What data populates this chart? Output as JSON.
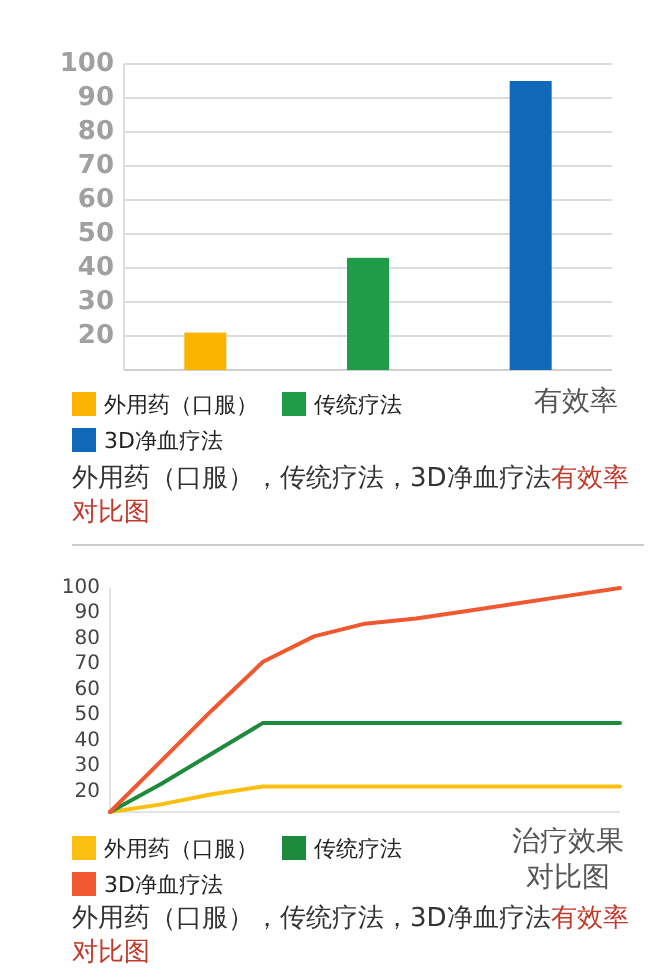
{
  "chart_data": [
    {
      "type": "bar",
      "xlabel": "有效率",
      "categories": [
        null,
        null,
        null
      ],
      "series": [
        {
          "name": "外用药（口服）",
          "color": "#fdb400",
          "values": [
            21,
            null,
            null
          ]
        },
        {
          "name": "传统疗法",
          "color": "#1e9c48",
          "values": [
            null,
            43,
            null
          ]
        },
        {
          "name": "3D净血疗法",
          "color": "#1068b8",
          "values": [
            null,
            null,
            95
          ]
        }
      ],
      "ylim": [
        10,
        100
      ],
      "yticks": [
        20,
        30,
        40,
        50,
        60,
        70,
        80,
        90,
        100
      ],
      "grid": "y",
      "legend": "bottom",
      "annotations": [
        "外用药（口服），传统疗法，3D净血疗法",
        "有效率对比图"
      ]
    },
    {
      "type": "line",
      "xlabel": "治疗效果对比图",
      "categories": [
        null,
        null,
        null,
        null,
        null,
        null,
        null,
        null,
        null,
        null,
        null
      ],
      "series": [
        {
          "name": "外用药（口服）",
          "color": "#fbbf0f",
          "values": [
            12,
            15,
            19,
            22,
            22,
            22,
            22,
            22,
            22,
            22,
            22
          ]
        },
        {
          "name": "传统疗法",
          "color": "#1e8a3c",
          "values": [
            12,
            23,
            35,
            47,
            47,
            47,
            47,
            47,
            47,
            47,
            47
          ]
        },
        {
          "name": "3D净血疗法",
          "color": "#f0582f",
          "values": [
            12,
            32,
            52,
            71,
            81,
            86,
            88,
            91,
            94,
            97,
            100
          ]
        }
      ],
      "ylim": [
        12,
        100
      ],
      "yticks": [
        20,
        30,
        40,
        50,
        60,
        70,
        80,
        90,
        100
      ],
      "legend": "bottom",
      "annotations": [
        "外用药（口服），传统疗法，3D净血疗法",
        "有效率对比图"
      ]
    }
  ]
}
